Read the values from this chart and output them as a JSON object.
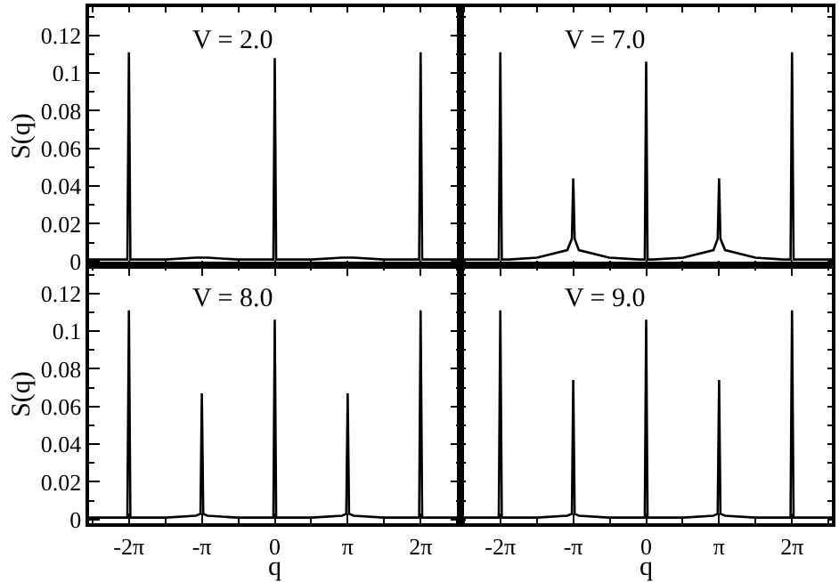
{
  "chart_data": [
    {
      "type": "line",
      "ylabel": "S(q)",
      "annotations": [
        "V = 2.0"
      ],
      "tick_labels": "y",
      "x": [
        -8,
        -6.7,
        -6.35,
        -6.283,
        -6.22,
        -5.9,
        -4.7,
        -3.4,
        -3.2,
        -3.142,
        -3.08,
        -2.9,
        -1.6,
        -0.3,
        -0.06,
        0,
        0.06,
        0.3,
        1.6,
        2.9,
        3.08,
        3.142,
        3.2,
        3.4,
        4.7,
        5.9,
        6.22,
        6.283,
        6.35,
        6.7,
        8
      ],
      "series": [
        {
          "color": "#000000",
          "values": [
            0.001,
            0.001,
            0.001,
            0.111,
            0.001,
            0.001,
            0.001,
            0.002,
            0.002,
            0.002,
            0.002,
            0.002,
            0.001,
            0.001,
            0.001,
            0.108,
            0.001,
            0.001,
            0.001,
            0.002,
            0.002,
            0.002,
            0.002,
            0.002,
            0.001,
            0.001,
            0.001,
            0.111,
            0.001,
            0.001,
            0.001
          ]
        }
      ],
      "xlim": [
        -8,
        8
      ],
      "xticks": [
        {
          "value": -6.2832,
          "label": null
        },
        {
          "value": -3.1416,
          "label": null
        },
        {
          "value": 0,
          "label": null
        },
        {
          "value": 3.1416,
          "label": null
        },
        {
          "value": 6.2832,
          "label": null
        }
      ],
      "ylim": [
        -0.002,
        0.135
      ],
      "yticks": [
        0,
        0.02,
        0.04,
        0.06,
        0.08,
        0.1,
        0.12
      ]
    },
    {
      "type": "line",
      "annotations": [
        "V = 7.0"
      ],
      "tick_labels": false,
      "x": [
        -8,
        -6.7,
        -6.35,
        -6.283,
        -6.22,
        -5.9,
        -4.7,
        -3.4,
        -3.2,
        -3.142,
        -3.08,
        -2.9,
        -1.6,
        -0.3,
        -0.06,
        0,
        0.06,
        0.3,
        1.6,
        2.9,
        3.08,
        3.142,
        3.2,
        3.4,
        4.7,
        5.9,
        6.22,
        6.283,
        6.35,
        6.7,
        8
      ],
      "series": [
        {
          "color": "#000000",
          "values": [
            0.001,
            0.001,
            0.001,
            0.111,
            0.001,
            0.001,
            0.002,
            0.006,
            0.012,
            0.044,
            0.012,
            0.006,
            0.002,
            0.001,
            0.001,
            0.106,
            0.001,
            0.001,
            0.002,
            0.006,
            0.012,
            0.044,
            0.012,
            0.006,
            0.002,
            0.001,
            0.001,
            0.111,
            0.001,
            0.001,
            0.001
          ]
        }
      ],
      "xlim": [
        -8,
        8
      ],
      "xticks": [
        {
          "value": -6.2832,
          "label": null
        },
        {
          "value": -3.1416,
          "label": null
        },
        {
          "value": 0,
          "label": null
        },
        {
          "value": 3.1416,
          "label": null
        },
        {
          "value": 6.2832,
          "label": null
        }
      ],
      "ylim": [
        -0.002,
        0.135
      ],
      "yticks": [
        {
          "value": 0,
          "label": null
        },
        {
          "value": 0.02,
          "label": null
        },
        {
          "value": 0.04,
          "label": null
        },
        {
          "value": 0.06,
          "label": null
        },
        {
          "value": 0.08,
          "label": null
        },
        {
          "value": 0.1,
          "label": null
        },
        {
          "value": 0.12,
          "label": null
        }
      ]
    },
    {
      "type": "line",
      "ylabel": "S(q)",
      "xlabel": "q",
      "annotations": [
        "V = 8.0"
      ],
      "x": [
        -8,
        -6.7,
        -6.35,
        -6.283,
        -6.22,
        -5.9,
        -4.7,
        -3.4,
        -3.2,
        -3.142,
        -3.08,
        -2.9,
        -1.6,
        -0.3,
        -0.06,
        0,
        0.06,
        0.3,
        1.6,
        2.9,
        3.08,
        3.142,
        3.2,
        3.4,
        4.7,
        5.9,
        6.22,
        6.283,
        6.35,
        6.7,
        8
      ],
      "series": [
        {
          "color": "#000000",
          "values": [
            0.001,
            0.001,
            0.001,
            0.111,
            0.001,
            0.001,
            0.001,
            0.002,
            0.003,
            0.067,
            0.003,
            0.002,
            0.001,
            0.001,
            0.001,
            0.106,
            0.001,
            0.001,
            0.001,
            0.002,
            0.003,
            0.067,
            0.003,
            0.002,
            0.001,
            0.001,
            0.001,
            0.111,
            0.001,
            0.001,
            0.001
          ]
        }
      ],
      "xlim": [
        -8,
        8
      ],
      "xticks": [
        {
          "value": -6.2832,
          "label": "-2π"
        },
        {
          "value": -3.1416,
          "label": "-π"
        },
        0,
        {
          "value": 3.1416,
          "label": "π"
        },
        {
          "value": 6.2832,
          "label": "2π"
        }
      ],
      "ylim": [
        -0.002,
        0.135
      ],
      "yticks": [
        0,
        0.02,
        0.04,
        0.06,
        0.08,
        0.1,
        0.12
      ]
    },
    {
      "type": "line",
      "xlabel": "q",
      "annotations": [
        "V = 9.0"
      ],
      "tick_labels": "x",
      "x": [
        -8,
        -6.7,
        -6.35,
        -6.283,
        -6.22,
        -5.9,
        -4.7,
        -3.4,
        -3.2,
        -3.142,
        -3.08,
        -2.9,
        -1.6,
        -0.3,
        -0.06,
        0,
        0.06,
        0.3,
        1.6,
        2.9,
        3.08,
        3.142,
        3.2,
        3.4,
        4.7,
        5.9,
        6.22,
        6.283,
        6.35,
        6.7,
        8
      ],
      "series": [
        {
          "color": "#000000",
          "values": [
            0.001,
            0.001,
            0.001,
            0.111,
            0.001,
            0.001,
            0.001,
            0.002,
            0.003,
            0.074,
            0.003,
            0.002,
            0.001,
            0.001,
            0.001,
            0.106,
            0.001,
            0.001,
            0.001,
            0.002,
            0.003,
            0.074,
            0.003,
            0.002,
            0.001,
            0.001,
            0.001,
            0.111,
            0.001,
            0.001,
            0.001
          ]
        }
      ],
      "xlim": [
        -8,
        8
      ],
      "xticks": [
        {
          "value": -6.2832,
          "label": "-2π"
        },
        {
          "value": -3.1416,
          "label": "-π"
        },
        0,
        {
          "value": 3.1416,
          "label": "π"
        },
        {
          "value": 6.2832,
          "label": "2π"
        }
      ],
      "ylim": [
        -0.002,
        0.135
      ],
      "yticks": [
        {
          "value": 0,
          "label": null
        },
        {
          "value": 0.02,
          "label": null
        },
        {
          "value": 0.04,
          "label": null
        },
        {
          "value": 0.06,
          "label": null
        },
        {
          "value": 0.08,
          "label": null
        },
        {
          "value": 0.1,
          "label": null
        },
        {
          "value": 0.12,
          "label": null
        }
      ]
    }
  ]
}
